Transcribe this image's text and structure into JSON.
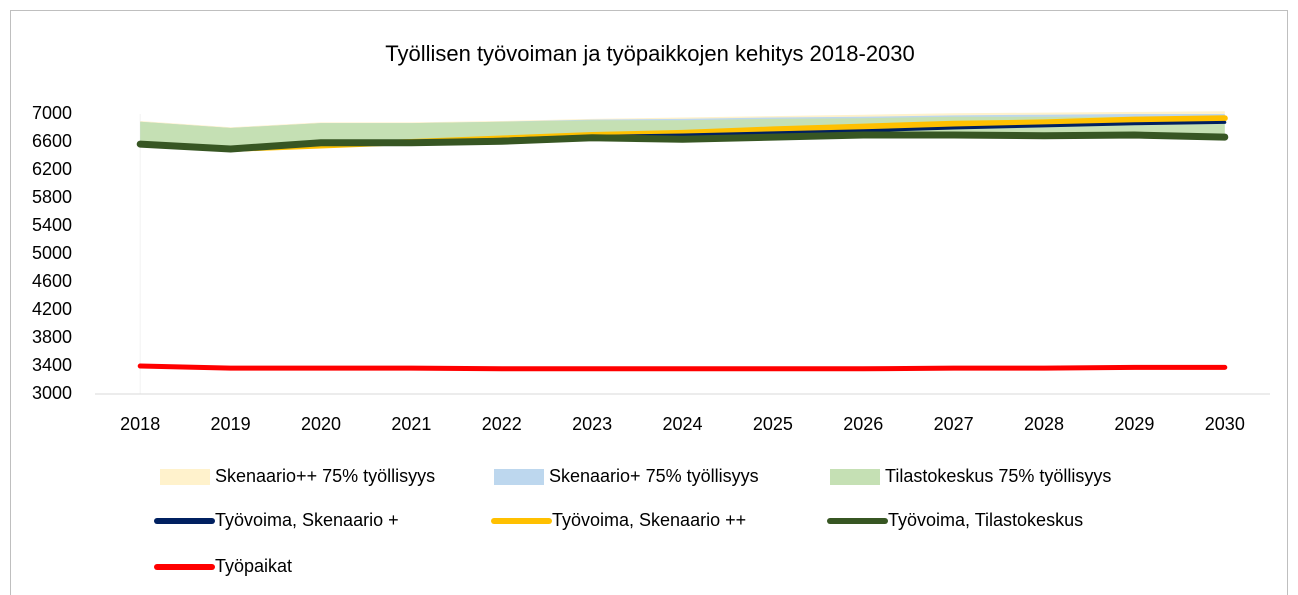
{
  "chart_data": {
    "type": "line",
    "title": "Työllisen työvoiman ja työpaikkojen kehitys 2018-2030",
    "categories": [
      "2018",
      "2019",
      "2020",
      "2021",
      "2022",
      "2023",
      "2024",
      "2025",
      "2026",
      "2027",
      "2028",
      "2029",
      "2030"
    ],
    "ylim": [
      3000,
      7000
    ],
    "yticks": [
      3000,
      3400,
      3800,
      4200,
      4600,
      5000,
      5400,
      5800,
      6200,
      6600,
      7000
    ],
    "grid": false,
    "legend": "bottom",
    "series": [
      {
        "name": "Skenaario++ 75% työllisyys",
        "type": "area",
        "color": "#fff2cc",
        "values": [
          6900,
          6810,
          6880,
          6880,
          6900,
          6930,
          6950,
          6970,
          6990,
          7010,
          7020,
          7030,
          7040
        ]
      },
      {
        "name": "Skenaario+ 75% työllisyys",
        "type": "area",
        "color": "#bdd7ee",
        "values": [
          6890,
          6800,
          6870,
          6870,
          6890,
          6920,
          6930,
          6950,
          6960,
          6980,
          6990,
          7000,
          7000
        ]
      },
      {
        "name": "Tilastokeskus 75% työllisyys",
        "type": "area",
        "color": "#c5e0b4",
        "values": [
          6890,
          6800,
          6870,
          6870,
          6890,
          6910,
          6910,
          6930,
          6940,
          6960,
          6960,
          6960,
          6960
        ]
      },
      {
        "name": "Työvoima, Skenaario +",
        "type": "line",
        "color": "#002060",
        "values": [
          6570,
          6500,
          6570,
          6600,
          6640,
          6680,
          6700,
          6730,
          6760,
          6800,
          6830,
          6860,
          6880
        ]
      },
      {
        "name": "Työvoima, Skenaario ++",
        "type": "line",
        "color": "#ffc000",
        "values": [
          6570,
          6500,
          6550,
          6600,
          6650,
          6700,
          6730,
          6780,
          6820,
          6860,
          6880,
          6920,
          6940
        ]
      },
      {
        "name": "Työvoima, Tilastokeskus",
        "type": "line",
        "color": "#375623",
        "values": [
          6570,
          6500,
          6590,
          6590,
          6610,
          6660,
          6640,
          6670,
          6700,
          6700,
          6690,
          6700,
          6670
        ]
      },
      {
        "name": "Työpaikat",
        "type": "line",
        "color": "#ff0000",
        "values": [
          3400,
          3370,
          3370,
          3370,
          3360,
          3360,
          3360,
          3360,
          3360,
          3370,
          3370,
          3380,
          3380
        ]
      }
    ]
  }
}
